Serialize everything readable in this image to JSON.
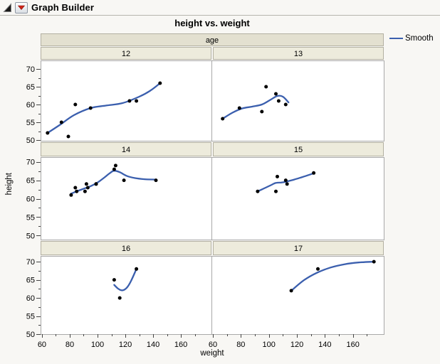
{
  "header": {
    "title": "Graph Builder",
    "disclosure_icon": "open-disclosure-triangle",
    "menu_icon": "red-triangle-menu"
  },
  "chart": {
    "title": "height vs. weight",
    "facet_title": "age",
    "x_title": "weight",
    "y_title": "height",
    "legend": {
      "items": [
        {
          "label": "Smooth",
          "color": "#3b5fae"
        }
      ]
    }
  },
  "colors": {
    "smooth_line": "#3b5fae",
    "point": "#000000",
    "facet_header_bg": "#e3e0d0",
    "facet_cell_bg": "#edebdc",
    "facet_border": "#b3b0a2",
    "panel_border": "#a9a9a9",
    "panel_bg": "#ffffff",
    "window_bg": "#f8f7f4",
    "tick": "#444444",
    "text": "#000000"
  },
  "chart_data": {
    "type": "scatter",
    "title": "height vs. weight",
    "x": "weight",
    "y": "height",
    "facet": "age",
    "smoother": "Smooth",
    "grid": false,
    "legend_position": "right",
    "x_ticks": [
      60,
      80,
      100,
      120,
      140,
      160
    ],
    "x_minor_ticks": [
      70,
      90,
      110,
      130,
      150,
      170
    ],
    "y_ticks": [
      50,
      55,
      60,
      65,
      70
    ],
    "y_minor_ticks": [
      52.5,
      57.5,
      62.5,
      67.5
    ],
    "xlim": [
      59,
      182
    ],
    "ylim": [
      50,
      72
    ],
    "panels": [
      {
        "label": "12",
        "row": 0,
        "col": 0,
        "points": [
          [
            64,
            52
          ],
          [
            74,
            55
          ],
          [
            79,
            51
          ],
          [
            84,
            60
          ],
          [
            95,
            59
          ],
          [
            123,
            61
          ],
          [
            128,
            61
          ],
          [
            145,
            66
          ]
        ],
        "smooth": [
          [
            64,
            52
          ],
          [
            73,
            54.3
          ],
          [
            83,
            57
          ],
          [
            95,
            59
          ],
          [
            106,
            59.7
          ],
          [
            118,
            60.4
          ],
          [
            130,
            62.2
          ],
          [
            138,
            63.9
          ],
          [
            145,
            66
          ]
        ]
      },
      {
        "label": "13",
        "row": 0,
        "col": 1,
        "points": [
          [
            67,
            56
          ],
          [
            79,
            59
          ],
          [
            95,
            58
          ],
          [
            98,
            65
          ],
          [
            105,
            63
          ],
          [
            107,
            61
          ],
          [
            112,
            60
          ]
        ],
        "smooth": [
          [
            67,
            56
          ],
          [
            74,
            57.7
          ],
          [
            81,
            58.9
          ],
          [
            88,
            59.4
          ],
          [
            95,
            60
          ],
          [
            101,
            61.3
          ],
          [
            106,
            62.4
          ],
          [
            110,
            62.2
          ],
          [
            114,
            60.6
          ]
        ]
      },
      {
        "label": "14",
        "row": 1,
        "col": 0,
        "points": [
          [
            81,
            61
          ],
          [
            84,
            63
          ],
          [
            85,
            62
          ],
          [
            91,
            62
          ],
          [
            92,
            64
          ],
          [
            93,
            63
          ],
          [
            99,
            64
          ],
          [
            99,
            64
          ],
          [
            112,
            68
          ],
          [
            113,
            69
          ],
          [
            119,
            65
          ],
          [
            142,
            65
          ]
        ],
        "smooth": [
          [
            81,
            61.4
          ],
          [
            85,
            62
          ],
          [
            90,
            62.7
          ],
          [
            95,
            63.4
          ],
          [
            100,
            64.4
          ],
          [
            105,
            65.8
          ],
          [
            109,
            67
          ],
          [
            112,
            67.6
          ],
          [
            116,
            67.2
          ],
          [
            121,
            66.2
          ],
          [
            127,
            65.6
          ],
          [
            134,
            65.3
          ],
          [
            142,
            65.2
          ]
        ]
      },
      {
        "label": "15",
        "row": 1,
        "col": 1,
        "points": [
          [
            92,
            62
          ],
          [
            105,
            62
          ],
          [
            106,
            66
          ],
          [
            112,
            65
          ],
          [
            113,
            64
          ],
          [
            132,
            67
          ]
        ],
        "smooth": [
          [
            92,
            62
          ],
          [
            96,
            62.7
          ],
          [
            101,
            63.6
          ],
          [
            105,
            64.3
          ],
          [
            109,
            64.4
          ],
          [
            113,
            64.7
          ],
          [
            118,
            65.2
          ],
          [
            124,
            65.9
          ],
          [
            132,
            66.9
          ]
        ]
      },
      {
        "label": "16",
        "row": 2,
        "col": 0,
        "points": [
          [
            112,
            65
          ],
          [
            116,
            60
          ],
          [
            128,
            68
          ]
        ],
        "smooth": [
          [
            112,
            63.6
          ],
          [
            115,
            62.5
          ],
          [
            118,
            62.1
          ],
          [
            121,
            62.8
          ],
          [
            124,
            64.6
          ],
          [
            128,
            68
          ]
        ]
      },
      {
        "label": "17",
        "row": 2,
        "col": 1,
        "points": [
          [
            116,
            62
          ],
          [
            135,
            68
          ],
          [
            175,
            70
          ]
        ],
        "smooth": [
          [
            116,
            62
          ],
          [
            125,
            64.9
          ],
          [
            134,
            66.9
          ],
          [
            144,
            68.4
          ],
          [
            154,
            69.3
          ],
          [
            164,
            69.8
          ],
          [
            175,
            70
          ]
        ]
      }
    ]
  }
}
